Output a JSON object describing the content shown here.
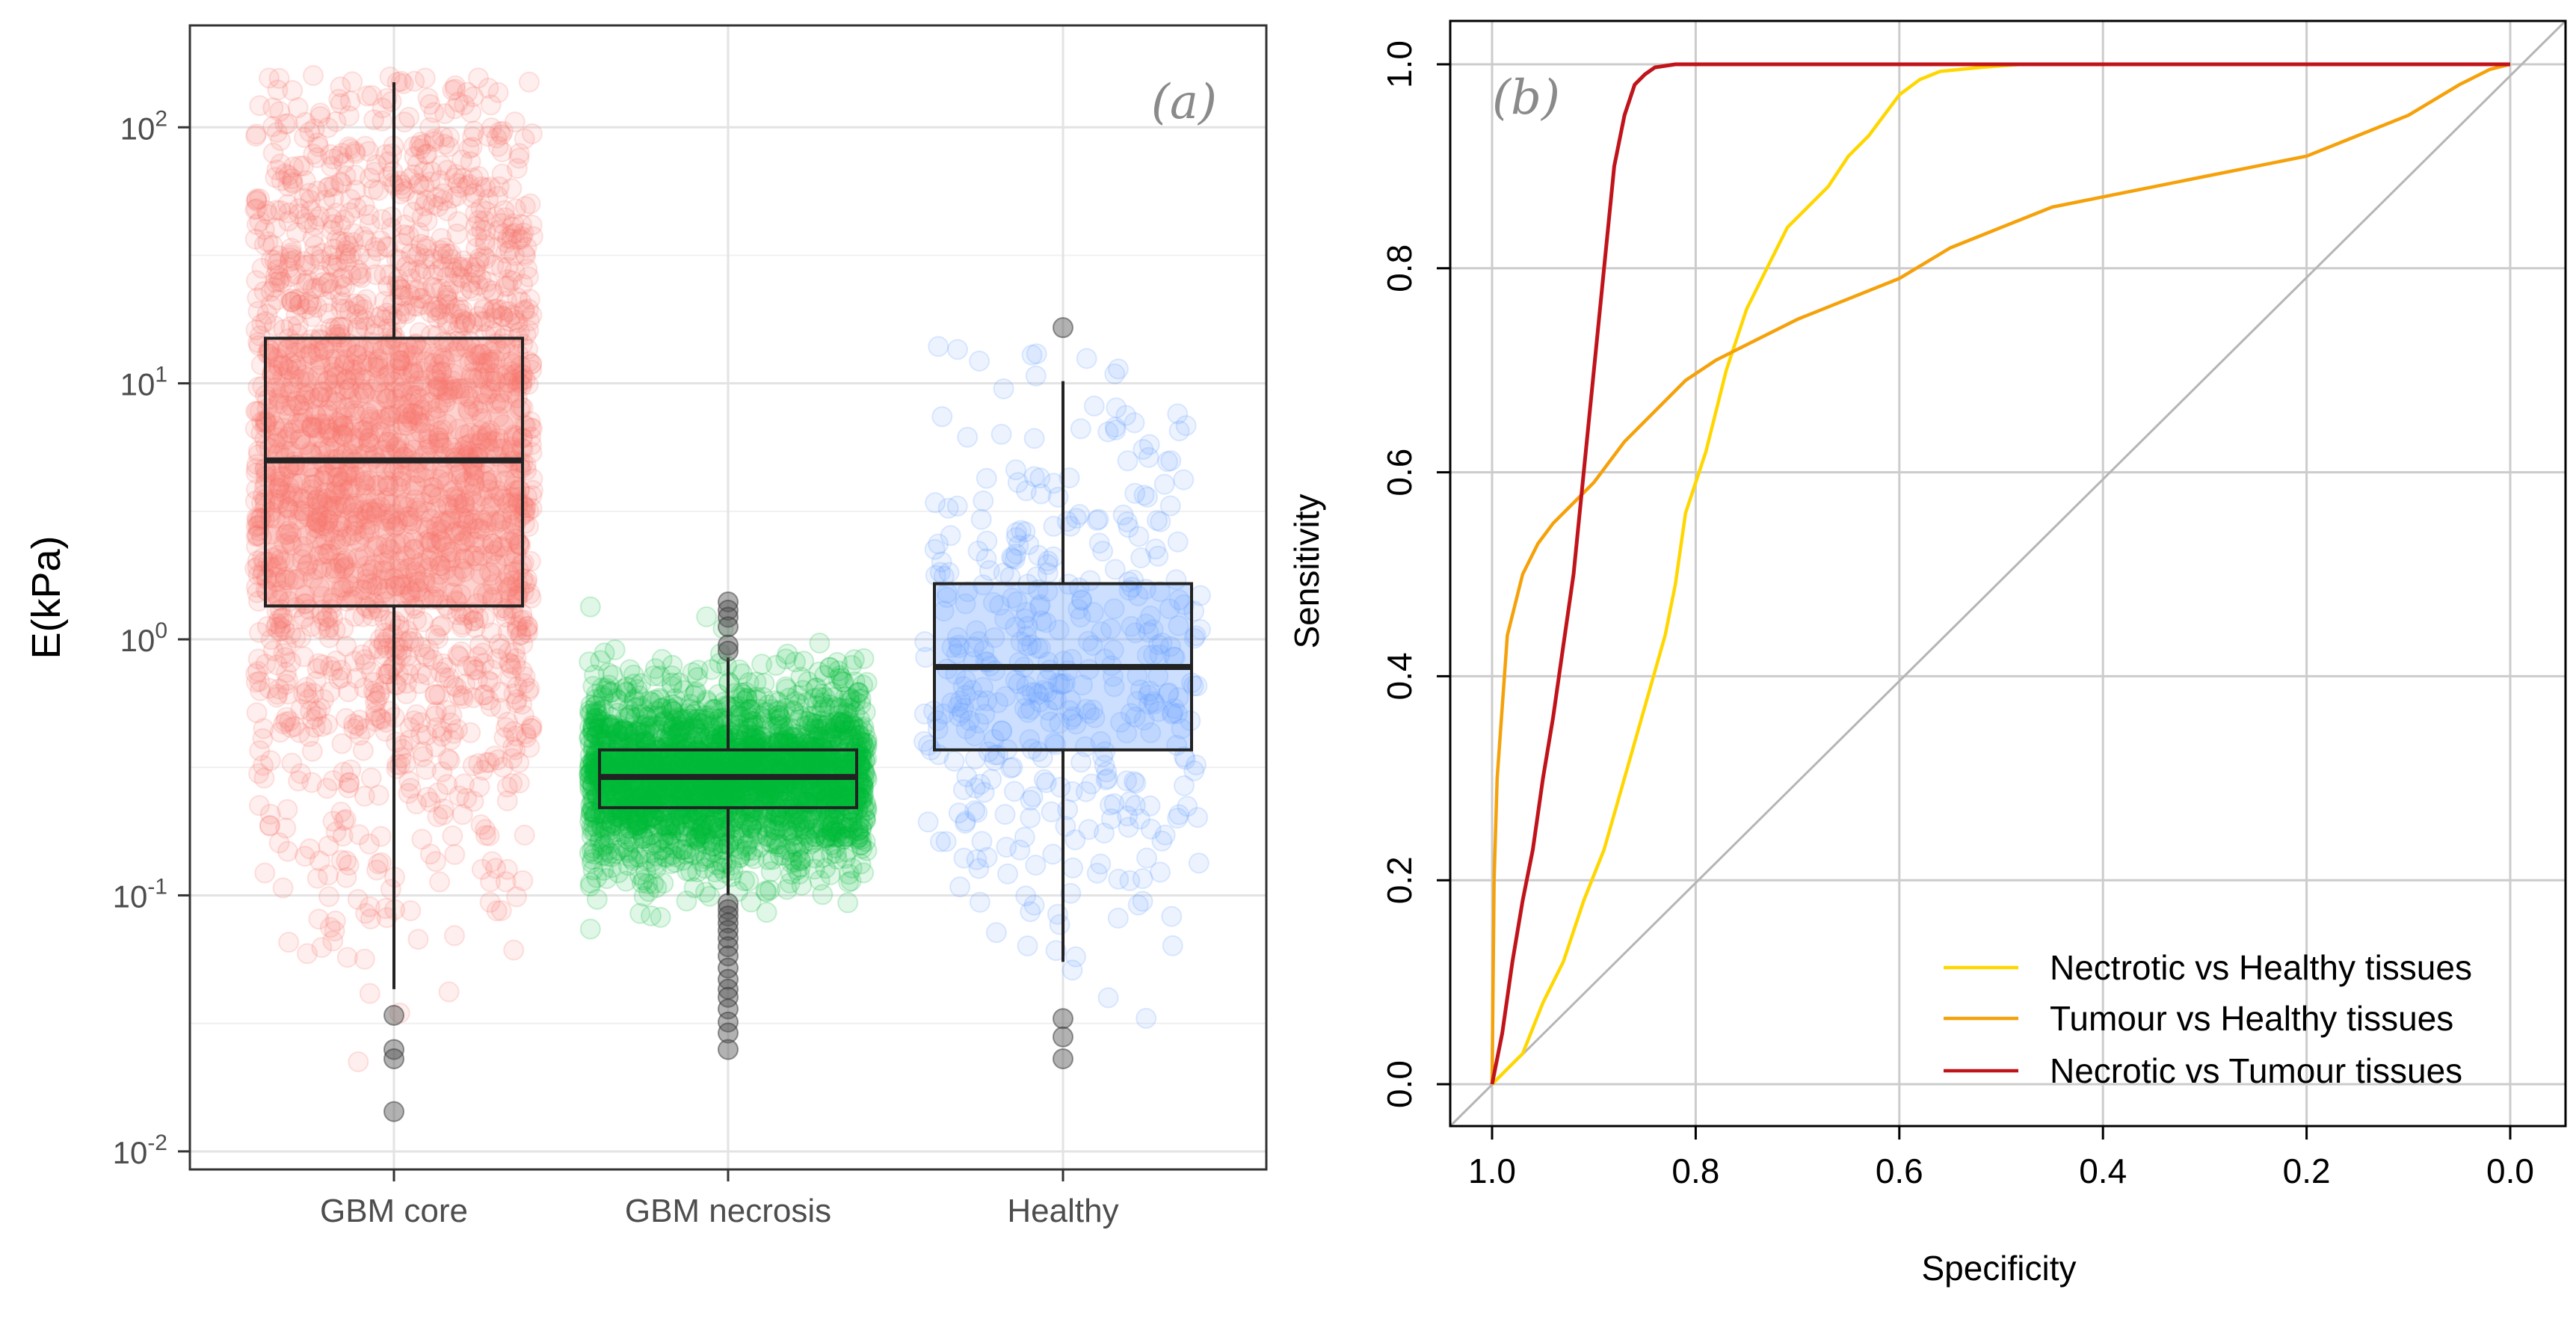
{
  "chart_data": [
    {
      "type": "boxplot",
      "panel_label": "(a)",
      "ylabel": "E(kPa)",
      "yscale": "log10",
      "ylim": [
        0.0085,
        250
      ],
      "y_ticks": [
        0.01,
        0.1,
        1,
        10,
        100
      ],
      "y_tick_labels": [
        {
          "base": "10",
          "exp": "-2"
        },
        {
          "base": "10",
          "exp": "-1"
        },
        {
          "base": "10",
          "exp": "0"
        },
        {
          "base": "10",
          "exp": "1"
        },
        {
          "base": "10",
          "exp": "2"
        }
      ],
      "grid": true,
      "categories": [
        "GBM core",
        "GBM necrosis",
        "Healthy"
      ],
      "boxes": [
        {
          "category": "GBM core",
          "q1": 1.35,
          "median": 5.0,
          "q3": 15.0,
          "whisker_low": 0.043,
          "whisker_high": 150,
          "outliers": [
            0.034,
            0.025,
            0.023,
            0.0143
          ],
          "fill": "#f8766d",
          "n_points": 2200,
          "jitter_range": [
            0.02,
            160
          ]
        },
        {
          "category": "GBM necrosis",
          "q1": 0.22,
          "median": 0.29,
          "q3": 0.37,
          "whisker_low": 0.1,
          "whisker_high": 0.85,
          "outliers": [
            1.4,
            1.3,
            1.22,
            1.12,
            0.95,
            0.9,
            0.093,
            0.088,
            0.083,
            0.078,
            0.073,
            0.068,
            0.063,
            0.058,
            0.052,
            0.047,
            0.043,
            0.04,
            0.036,
            0.032,
            0.029,
            0.025
          ],
          "fill": "#00ba38",
          "n_points": 2600,
          "jitter_range": [
            0.025,
            1.45
          ]
        },
        {
          "category": "Healthy",
          "q1": 0.37,
          "median": 0.78,
          "q3": 1.65,
          "whisker_low": 0.055,
          "whisker_high": 10.2,
          "outliers": [
            16.5,
            0.033,
            0.028,
            0.023
          ],
          "fill": "#619cff",
          "n_points": 420,
          "jitter_range": [
            0.02,
            16
          ]
        }
      ]
    },
    {
      "type": "line",
      "panel_label": "(b)",
      "xlabel": "Specificity",
      "ylabel": "Sensitivity",
      "xlim": [
        1.0,
        0.0
      ],
      "ylim": [
        0.0,
        1.0
      ],
      "x_ticks": [
        "1.0",
        "0.8",
        "0.6",
        "0.4",
        "0.2",
        "0.0"
      ],
      "y_ticks": [
        "0.0",
        "0.2",
        "0.4",
        "0.6",
        "0.8",
        "1.0"
      ],
      "grid": true,
      "legend_position": "bottom-right",
      "diagonal": true,
      "series": [
        {
          "name": "Nectrotic vs Healthy tissues",
          "color": "#ffd700",
          "x": [
            1.0,
            0.99,
            0.98,
            0.97,
            0.95,
            0.93,
            0.91,
            0.89,
            0.87,
            0.85,
            0.83,
            0.82,
            0.81,
            0.79,
            0.77,
            0.75,
            0.73,
            0.71,
            0.69,
            0.67,
            0.65,
            0.63,
            0.6,
            0.58,
            0.56,
            0.52,
            0.48,
            0.45,
            0.4,
            0.3,
            0.0
          ],
          "y": [
            0.0,
            0.01,
            0.02,
            0.03,
            0.08,
            0.12,
            0.18,
            0.23,
            0.3,
            0.37,
            0.44,
            0.49,
            0.56,
            0.62,
            0.7,
            0.76,
            0.8,
            0.84,
            0.86,
            0.88,
            0.91,
            0.93,
            0.97,
            0.985,
            0.993,
            0.997,
            1.0,
            1.0,
            1.0,
            1.0,
            1.0
          ]
        },
        {
          "name": "Tumour vs Healthy tissues",
          "color": "#f5a10a",
          "x": [
            1.0,
            0.998,
            0.995,
            0.99,
            0.985,
            0.97,
            0.955,
            0.94,
            0.92,
            0.9,
            0.87,
            0.84,
            0.81,
            0.78,
            0.74,
            0.7,
            0.65,
            0.6,
            0.55,
            0.5,
            0.45,
            0.4,
            0.35,
            0.3,
            0.25,
            0.2,
            0.15,
            0.1,
            0.05,
            0.02,
            0.0
          ],
          "y": [
            0.0,
            0.2,
            0.3,
            0.37,
            0.44,
            0.5,
            0.53,
            0.55,
            0.57,
            0.59,
            0.63,
            0.66,
            0.69,
            0.71,
            0.73,
            0.75,
            0.77,
            0.79,
            0.82,
            0.84,
            0.86,
            0.87,
            0.88,
            0.89,
            0.9,
            0.91,
            0.93,
            0.95,
            0.98,
            0.995,
            1.0
          ]
        },
        {
          "name": "Necrotic vs Tumour tissues",
          "color": "#c0141a",
          "x": [
            1.0,
            0.99,
            0.98,
            0.97,
            0.96,
            0.95,
            0.94,
            0.93,
            0.92,
            0.915,
            0.91,
            0.9,
            0.89,
            0.88,
            0.87,
            0.86,
            0.85,
            0.84,
            0.82,
            0.8,
            0.7,
            0.5,
            0.0
          ],
          "y": [
            0.0,
            0.05,
            0.12,
            0.18,
            0.23,
            0.3,
            0.36,
            0.43,
            0.5,
            0.55,
            0.6,
            0.7,
            0.8,
            0.9,
            0.95,
            0.98,
            0.99,
            0.997,
            1.0,
            1.0,
            1.0,
            1.0,
            1.0
          ]
        }
      ]
    }
  ]
}
